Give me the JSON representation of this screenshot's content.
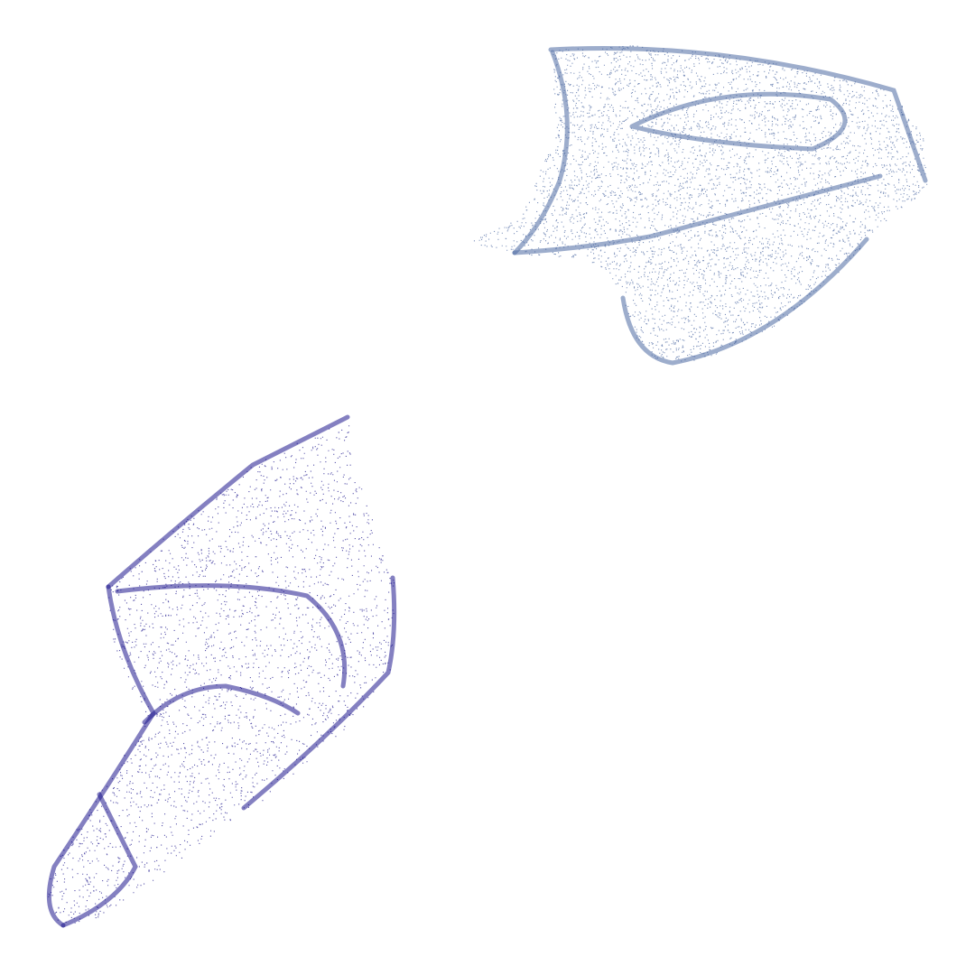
{
  "figures": [
    {
      "color": "#4d6aa3"
    },
    {
      "color": "#1f188e"
    }
  ]
}
